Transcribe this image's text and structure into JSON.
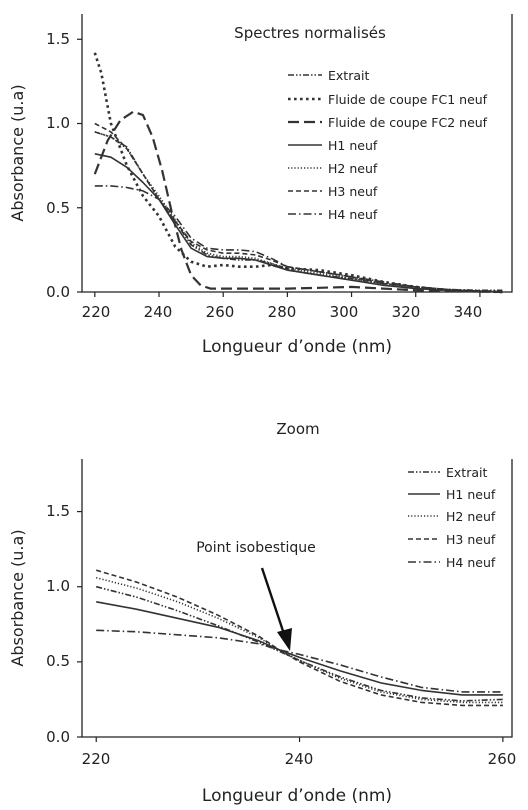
{
  "chart_data": [
    {
      "type": "line",
      "title": "Spectres normalisés",
      "xlabel": "Longueur d’onde (nm)",
      "ylabel": "Absorbance (u.a)",
      "xlim": [
        220,
        350
      ],
      "ylim": [
        0,
        1.65
      ],
      "xticks": [
        220,
        240,
        260,
        280,
        300,
        320,
        340
      ],
      "yticks": [
        0.0,
        0.5,
        1.0,
        1.5
      ],
      "xtick_labels": [
        "220",
        "240",
        "260",
        "280",
        "300",
        "320",
        "340"
      ],
      "ytick_labels": [
        "0.0",
        "0.5",
        "1.0",
        "1.5"
      ],
      "grid": false,
      "legend_position": "top-right",
      "series": [
        {
          "name": "Extrait",
          "style": "dashdotdot",
          "x": [
            220,
            225,
            230,
            235,
            240,
            245,
            250,
            255,
            260,
            265,
            270,
            275,
            280,
            290,
            300,
            310,
            320,
            330,
            340,
            347
          ],
          "y": [
            0.95,
            0.92,
            0.86,
            0.7,
            0.55,
            0.42,
            0.28,
            0.22,
            0.2,
            0.19,
            0.19,
            0.17,
            0.13,
            0.1,
            0.08,
            0.05,
            0.03,
            0.015,
            0.01,
            0.01
          ]
        },
        {
          "name": "Fluide de coupe FC1 neuf",
          "style": "dotted",
          "x": [
            220,
            222,
            225,
            230,
            235,
            240,
            245,
            250,
            255,
            260,
            265,
            270,
            275,
            280,
            290,
            300,
            310,
            320,
            330,
            340,
            347
          ],
          "y": [
            1.42,
            1.3,
            1.0,
            0.75,
            0.57,
            0.45,
            0.27,
            0.18,
            0.15,
            0.16,
            0.15,
            0.15,
            0.16,
            0.14,
            0.13,
            0.1,
            0.06,
            0.03,
            0.01,
            0.005,
            0.0
          ]
        },
        {
          "name": "Fluide de coupe FC2 neuf",
          "style": "longdash",
          "x": [
            220,
            224,
            228,
            232,
            235,
            238,
            241,
            244,
            247,
            250,
            253,
            256,
            260,
            270,
            280,
            290,
            300,
            310,
            320,
            347
          ],
          "y": [
            0.7,
            0.9,
            1.02,
            1.07,
            1.05,
            0.92,
            0.72,
            0.47,
            0.25,
            0.1,
            0.04,
            0.02,
            0.02,
            0.02,
            0.02,
            0.025,
            0.03,
            0.02,
            0.01,
            0.0
          ]
        },
        {
          "name": "H1 neuf",
          "style": "solid",
          "x": [
            220,
            225,
            230,
            235,
            240,
            245,
            250,
            255,
            260,
            265,
            270,
            275,
            280,
            290,
            300,
            310,
            320,
            330,
            340,
            347
          ],
          "y": [
            0.82,
            0.8,
            0.74,
            0.65,
            0.55,
            0.4,
            0.26,
            0.21,
            0.2,
            0.2,
            0.19,
            0.16,
            0.13,
            0.1,
            0.07,
            0.04,
            0.02,
            0.01,
            0.005,
            0.0
          ]
        },
        {
          "name": "H2 neuf",
          "style": "finedot",
          "x": [
            220,
            225,
            230,
            235,
            240,
            245,
            250,
            255,
            260,
            265,
            270,
            275,
            280,
            290,
            300,
            310,
            320,
            330,
            340,
            347
          ],
          "y": [
            0.95,
            0.92,
            0.85,
            0.7,
            0.57,
            0.43,
            0.29,
            0.23,
            0.21,
            0.21,
            0.2,
            0.17,
            0.14,
            0.11,
            0.08,
            0.05,
            0.03,
            0.015,
            0.005,
            0.0
          ]
        },
        {
          "name": "H3 neuf",
          "style": "dashed",
          "x": [
            220,
            225,
            230,
            235,
            240,
            245,
            250,
            255,
            260,
            265,
            270,
            275,
            280,
            290,
            300,
            310,
            320,
            330,
            340,
            347
          ],
          "y": [
            1.0,
            0.95,
            0.85,
            0.7,
            0.55,
            0.42,
            0.3,
            0.25,
            0.23,
            0.23,
            0.22,
            0.19,
            0.15,
            0.12,
            0.09,
            0.05,
            0.03,
            0.015,
            0.005,
            0.0
          ]
        },
        {
          "name": "H4 neuf",
          "style": "dashdot",
          "x": [
            220,
            225,
            230,
            235,
            240,
            245,
            250,
            255,
            260,
            265,
            270,
            275,
            280,
            290,
            300,
            310,
            320,
            330,
            340,
            347
          ],
          "y": [
            0.63,
            0.63,
            0.62,
            0.6,
            0.55,
            0.45,
            0.32,
            0.26,
            0.25,
            0.25,
            0.24,
            0.2,
            0.15,
            0.12,
            0.09,
            0.06,
            0.03,
            0.015,
            0.005,
            0.0
          ]
        }
      ]
    },
    {
      "type": "line",
      "title": "Zoom",
      "xlabel": "Longueur d’onde (nm)",
      "ylabel": "Absorbance (u.a)",
      "xlim": [
        220,
        260
      ],
      "ylim": [
        0,
        1.85
      ],
      "xticks": [
        220,
        240,
        260
      ],
      "yticks": [
        0.0,
        0.5,
        1.0,
        1.5
      ],
      "xtick_labels": [
        "220",
        "240",
        "260"
      ],
      "ytick_labels": [
        "0.0",
        "0.5",
        "1.0",
        "1.5"
      ],
      "grid": false,
      "legend_position": "top-right",
      "annotation": {
        "text": "Point isobestique",
        "x": 238.3,
        "y": 0.56
      },
      "series": [
        {
          "name": "Extrait",
          "style": "dashdotdot",
          "x": [
            220,
            224,
            228,
            232,
            236,
            238,
            240,
            244,
            248,
            252,
            256,
            260
          ],
          "y": [
            1.0,
            0.93,
            0.84,
            0.74,
            0.63,
            0.57,
            0.51,
            0.4,
            0.31,
            0.26,
            0.24,
            0.25
          ]
        },
        {
          "name": "H1 neuf",
          "style": "solid",
          "x": [
            220,
            224,
            228,
            232,
            236,
            238,
            240,
            244,
            248,
            252,
            256,
            260
          ],
          "y": [
            0.9,
            0.85,
            0.79,
            0.73,
            0.64,
            0.58,
            0.53,
            0.44,
            0.36,
            0.31,
            0.28,
            0.28
          ]
        },
        {
          "name": "H2 neuf",
          "style": "finedot",
          "x": [
            220,
            224,
            228,
            232,
            236,
            238,
            240,
            244,
            248,
            252,
            256,
            260
          ],
          "y": [
            1.06,
            0.99,
            0.9,
            0.79,
            0.66,
            0.58,
            0.51,
            0.39,
            0.3,
            0.25,
            0.23,
            0.23
          ]
        },
        {
          "name": "H3 neuf",
          "style": "dashed",
          "x": [
            220,
            224,
            228,
            232,
            236,
            238,
            240,
            244,
            248,
            252,
            256,
            260
          ],
          "y": [
            1.11,
            1.03,
            0.93,
            0.81,
            0.67,
            0.58,
            0.5,
            0.37,
            0.28,
            0.23,
            0.21,
            0.21
          ]
        },
        {
          "name": "H4 neuf",
          "style": "dashdot",
          "x": [
            220,
            224,
            228,
            232,
            236,
            238,
            240,
            244,
            248,
            252,
            256,
            260
          ],
          "y": [
            0.71,
            0.7,
            0.68,
            0.66,
            0.62,
            0.58,
            0.55,
            0.48,
            0.4,
            0.33,
            0.3,
            0.3
          ]
        }
      ]
    }
  ]
}
